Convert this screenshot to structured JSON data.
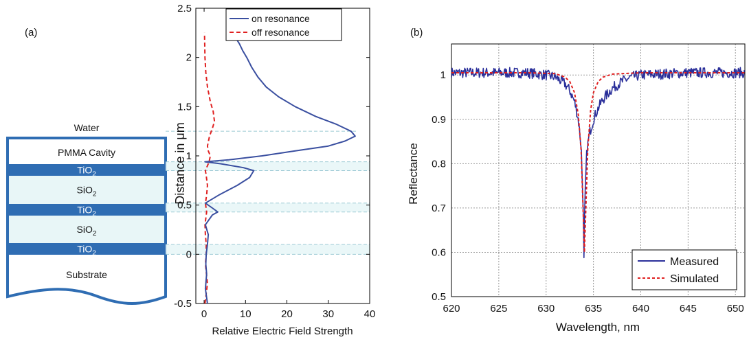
{
  "panels": {
    "a": {
      "label": "(a)"
    },
    "b": {
      "label": "(b)"
    }
  },
  "stack": {
    "top_label": "Water",
    "layers": [
      {
        "name": "PMMA Cavity",
        "sub": "",
        "fill": "#ffffff",
        "text_color": "#111111"
      },
      {
        "name": "TiO",
        "sub": "2",
        "fill": "#2f6db3",
        "text_color": "#ffffff"
      },
      {
        "name": "SiO",
        "sub": "2",
        "fill": "#e8f6f7",
        "text_color": "#111111"
      },
      {
        "name": "TiO",
        "sub": "2",
        "fill": "#2f6db3",
        "text_color": "#ffffff"
      },
      {
        "name": "SiO",
        "sub": "2",
        "fill": "#e8f6f7",
        "text_color": "#111111"
      },
      {
        "name": "TiO",
        "sub": "2",
        "fill": "#2f6db3",
        "text_color": "#ffffff"
      },
      {
        "name": "Substrate",
        "sub": "",
        "fill": "#ffffff",
        "text_color": "#111111"
      }
    ]
  },
  "chart_data": [
    {
      "type": "line",
      "orientation": "horizontal",
      "xlabel": "Relative Electric Field Strength",
      "ylabel": "Distance in μm",
      "xlim": [
        -2,
        40
      ],
      "ylim": [
        -0.5,
        2.5
      ],
      "xticks": [
        0,
        10,
        20,
        30,
        40
      ],
      "yticks": [
        -0.5,
        0,
        0.5,
        1,
        1.5,
        2,
        2.5
      ],
      "ytick_labels": [
        "-0.5",
        "0",
        "0.5",
        "1",
        "1.5",
        "2",
        "2.5"
      ],
      "grid": false,
      "legend_position": "top-right",
      "interfaces": [
        0.0,
        0.1,
        0.43,
        0.52,
        0.85,
        0.94,
        1.25
      ],
      "series": [
        {
          "name": "on resonance",
          "color": "#3a4fa0",
          "style": "solid",
          "x": [
            0.8,
            0.3,
            0.6,
            0.4,
            0.5,
            0.8,
            1.0,
            0.3,
            2.0,
            3.3,
            2.0,
            0.3,
            3.5,
            8.0,
            11.0,
            12.0,
            9.5,
            4.0,
            0.2,
            6.0,
            14.0,
            22.0,
            30.0,
            34.0,
            36.5,
            35.5,
            32.0,
            27.0,
            22.0,
            18.0,
            15.0,
            13.0,
            11.5,
            10.3,
            9.3,
            8.5,
            7.6,
            6.9
          ],
          "y": [
            -0.5,
            -0.35,
            -0.2,
            -0.1,
            0.0,
            0.1,
            0.2,
            0.3,
            0.4,
            0.43,
            0.47,
            0.52,
            0.6,
            0.7,
            0.78,
            0.85,
            0.88,
            0.92,
            0.94,
            0.96,
            1.0,
            1.05,
            1.1,
            1.15,
            1.2,
            1.25,
            1.32,
            1.4,
            1.5,
            1.6,
            1.7,
            1.8,
            1.9,
            2.0,
            2.07,
            2.14,
            2.2,
            2.25
          ]
        },
        {
          "name": "off resonance",
          "color": "#e02020",
          "style": "dashed",
          "x": [
            0.2,
            0.8,
            0.3,
            0.5,
            0.5,
            0.3,
            0.2,
            0.6,
            0.3,
            0.6,
            0.8,
            0.5,
            0.3,
            1.2,
            1.5,
            1.0,
            0.8,
            1.3,
            2.0,
            2.5,
            2.2,
            1.5,
            0.8,
            0.4,
            0.2,
            0.1
          ],
          "y": [
            -0.5,
            -0.3,
            -0.1,
            0.0,
            0.1,
            0.2,
            0.3,
            0.43,
            0.52,
            0.6,
            0.7,
            0.8,
            0.85,
            0.94,
            1.0,
            1.05,
            1.1,
            1.2,
            1.28,
            1.35,
            1.45,
            1.55,
            1.7,
            1.85,
            2.0,
            2.25
          ]
        }
      ]
    },
    {
      "type": "line",
      "xlabel": "Wavelength, nm",
      "ylabel": "Reflectance",
      "xlim": [
        620,
        651
      ],
      "ylim": [
        0.5,
        1.07
      ],
      "xticks": [
        620,
        625,
        630,
        635,
        640,
        645,
        650
      ],
      "yticks": [
        0.5,
        0.6,
        0.7,
        0.8,
        0.9,
        1.0
      ],
      "ytick_labels": [
        "0.5",
        "0.6",
        "0.7",
        "0.8",
        "0.9",
        "1"
      ],
      "grid": true,
      "legend_position": "bottom-right",
      "series": [
        {
          "name": "Measured",
          "color": "#2a2f9a",
          "style": "solid",
          "noise": 0.012,
          "x": [
            620,
            628,
            630,
            631,
            632,
            632.5,
            633,
            633.4,
            633.7,
            633.9,
            634.0,
            634.1,
            634.3,
            634.6,
            635,
            635.5,
            636,
            637,
            638,
            639,
            640,
            645,
            651
          ],
          "y": [
            1.005,
            1.005,
            1.0,
            0.995,
            0.98,
            0.965,
            0.94,
            0.9,
            0.84,
            0.72,
            0.58,
            0.72,
            0.83,
            0.87,
            0.9,
            0.925,
            0.945,
            0.97,
            0.985,
            0.995,
            1.0,
            1.005,
            1.005
          ]
        },
        {
          "name": "Simulated",
          "color": "#e02020",
          "style": "dashed",
          "x": [
            620,
            628,
            631,
            632,
            632.5,
            633,
            633.4,
            633.7,
            633.9,
            634.05,
            634.2,
            634.4,
            634.7,
            635,
            635.5,
            636,
            637,
            640,
            651
          ],
          "y": [
            1.005,
            1.005,
            1.003,
            0.995,
            0.985,
            0.96,
            0.91,
            0.83,
            0.7,
            0.6,
            0.7,
            0.83,
            0.92,
            0.96,
            0.985,
            0.995,
            1.002,
            1.005,
            1.005
          ]
        }
      ]
    }
  ]
}
